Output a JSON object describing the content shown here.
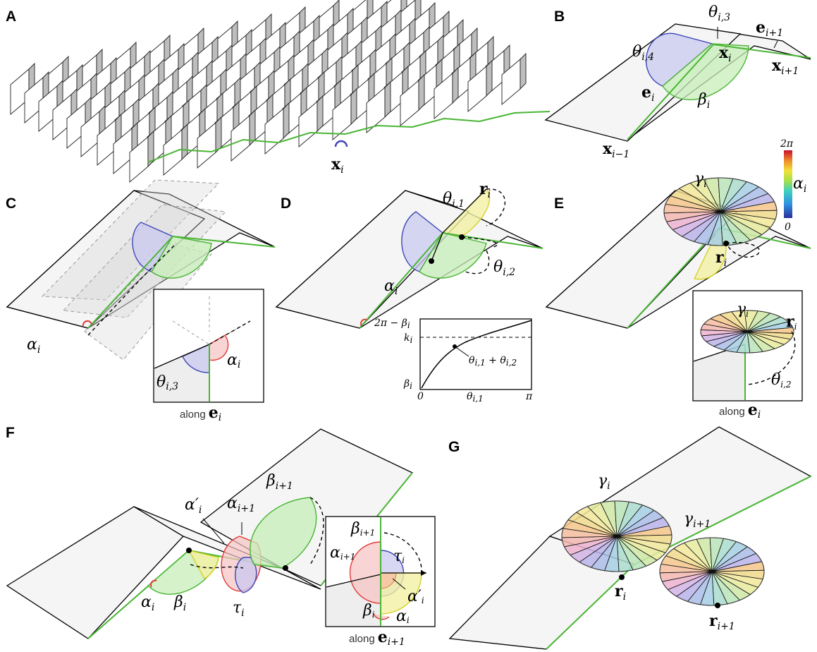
{
  "panels": {
    "A": {
      "letter": "A",
      "x_label": "x",
      "x_sub": "i"
    },
    "B": {
      "letter": "B",
      "theta3": "θ",
      "theta3_sub": "i,3",
      "theta4": "θ",
      "theta4_sub": "i,4",
      "e_next": "e",
      "e_next_sub": "i+1",
      "x_i": "x",
      "x_i_sub": "i",
      "x_next": "x",
      "x_next_sub": "i+1",
      "e_i": "e",
      "e_i_sub": "i",
      "beta": "β",
      "beta_sub": "i",
      "x_prev": "x",
      "x_prev_sub": "i−1"
    },
    "C": {
      "letter": "C",
      "alpha": "α",
      "alpha_sub": "i",
      "inset_alpha": "α",
      "inset_alpha_sub": "i",
      "inset_theta": "θ",
      "inset_theta_sub": "i,3",
      "caption": "along",
      "caption_vec": "e",
      "caption_sub": "i"
    },
    "D": {
      "letter": "D",
      "theta1": "θ",
      "theta1_sub": "i,1",
      "r": "r",
      "r_sub": "i",
      "theta2": "θ",
      "theta2_sub": "i,2",
      "alpha": "α",
      "alpha_sub": "i",
      "plot": {
        "ytop": "2π − β",
        "ytop_sub": "i",
        "k": "k",
        "k_sub": "i",
        "ybot": "β",
        "ybot_sub": "i",
        "x0": "0",
        "xmid": "θ",
        "xmid_sub": "i,1",
        "xmax": "π",
        "curve_label": "θ",
        "curve_label_a": "i,1",
        "curve_plus": " + θ",
        "curve_label_b": "i,2"
      }
    },
    "E": {
      "letter": "E",
      "gamma": "γ",
      "gamma_sub": "i",
      "r": "r",
      "r_sub": "i",
      "cbar_top": "2π",
      "cbar_bottom": "0",
      "cbar_label": "α",
      "cbar_label_sub": "i",
      "inset_gamma": "γ",
      "inset_gamma_sub": "i",
      "inset_r": "r",
      "inset_r_sub": "i",
      "inset_theta": "θ",
      "inset_theta_sub": "i,2",
      "caption": "along",
      "caption_vec": "e",
      "caption_sub": "i"
    },
    "F": {
      "letter": "F",
      "alpha_prime": "α′",
      "alpha_prime_sub": "i",
      "alpha_next": "α",
      "alpha_next_sub": "i+1",
      "beta_next": "β",
      "beta_next_sub": "i+1",
      "alpha": "α",
      "alpha_sub": "i",
      "beta": "β",
      "beta_sub": "i",
      "tau": "τ",
      "tau_sub": "i",
      "inset": {
        "beta_next": "β",
        "beta_next_sub": "i+1",
        "alpha_next": "α",
        "alpha_next_sub": "i+1",
        "tau": "τ",
        "tau_sub": "i",
        "alpha_prime": "α′",
        "alpha_prime_sub": "i",
        "beta": "β",
        "beta_sub": "i",
        "alpha": "α",
        "alpha_sub": "i"
      },
      "caption": "along",
      "caption_vec": "e",
      "caption_sub": "i+1"
    },
    "G": {
      "letter": "G",
      "gamma": "γ",
      "gamma_sub": "i",
      "gamma_next": "γ",
      "gamma_next_sub": "i+1",
      "r": "r",
      "r_sub": "i",
      "r_next": "r",
      "r_next_sub": "i+1"
    }
  },
  "colors": {
    "green": "#4ab534",
    "blue": "#3f47b5",
    "red": "#e33a3a",
    "yellow": "#d6cf1f"
  }
}
